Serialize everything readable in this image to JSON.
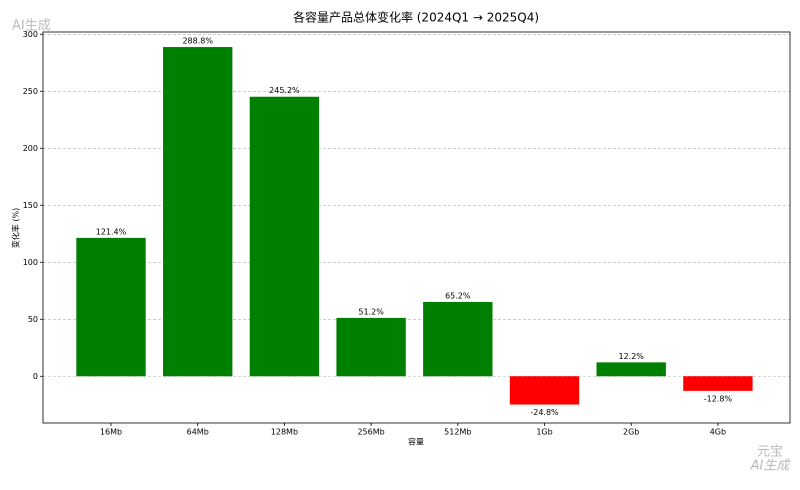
{
  "chart_data": {
    "type": "bar",
    "title": "各容量产品总体变化率 (2024Q1 → 2025Q4)",
    "xlabel": "容量",
    "ylabel": "变化率 (%)",
    "categories": [
      "16Mb",
      "64Mb",
      "128Mb",
      "256Mb",
      "512Mb",
      "1Gb",
      "2Gb",
      "4Gb"
    ],
    "values": [
      121.4,
      288.8,
      245.2,
      51.2,
      65.2,
      -24.8,
      12.2,
      -12.8
    ],
    "value_labels": [
      "121.4%",
      "288.8%",
      "245.2%",
      "51.2%",
      "65.2%",
      "-24.8%",
      "12.2%",
      "-12.8%"
    ],
    "colors": [
      "#008000",
      "#008000",
      "#008000",
      "#008000",
      "#008000",
      "#ff0000",
      "#008000",
      "#ff0000"
    ],
    "ylim": [
      -41,
      302
    ],
    "yticks": [
      0,
      50,
      100,
      150,
      200,
      250,
      300
    ],
    "grid": true
  },
  "watermarks": [
    "AI生成",
    "元宝",
    "AI生成"
  ]
}
